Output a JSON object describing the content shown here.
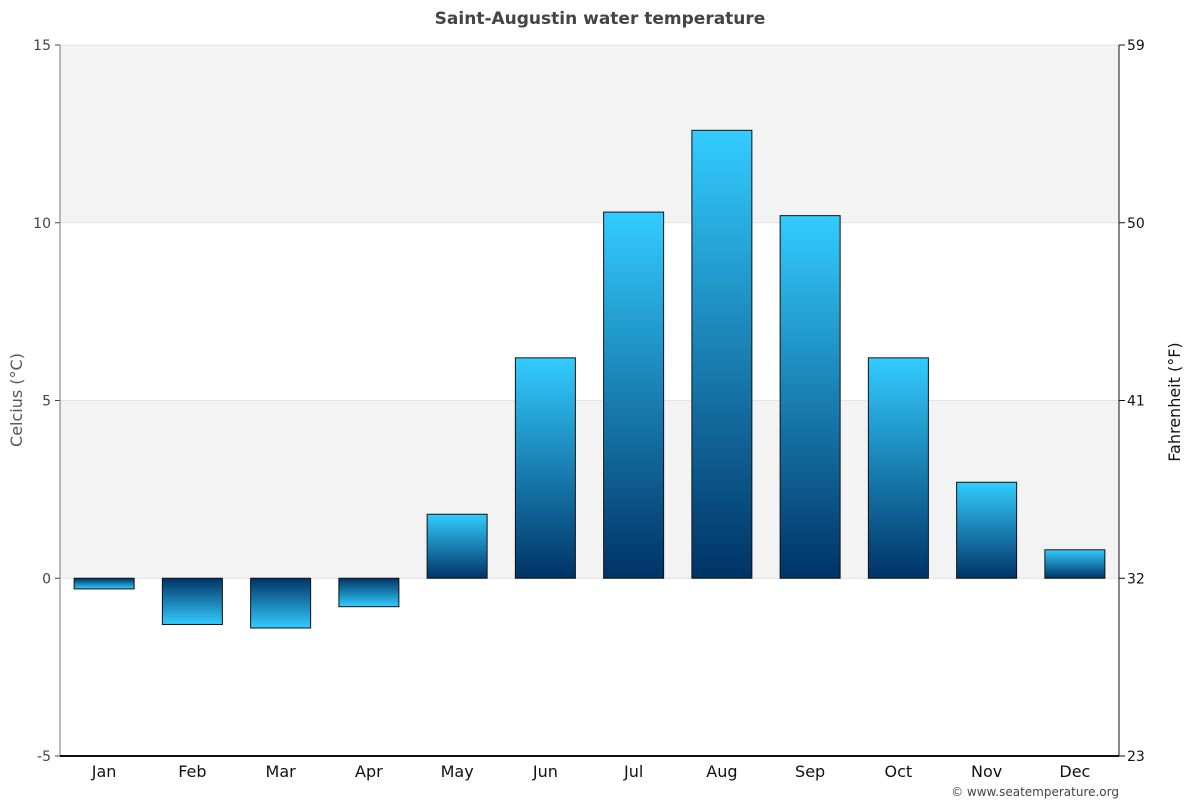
{
  "chart_data": {
    "type": "bar",
    "title": "Saint-Augustin water temperature",
    "ylabel": "Celcius (°C)",
    "ylabel_right": "Fahrenheit (°F)",
    "categories": [
      "Jan",
      "Feb",
      "Mar",
      "Apr",
      "May",
      "Jun",
      "Jul",
      "Aug",
      "Sep",
      "Oct",
      "Nov",
      "Dec"
    ],
    "values": [
      -0.3,
      -1.3,
      -1.4,
      -0.8,
      1.8,
      6.2,
      10.3,
      12.6,
      10.2,
      6.2,
      2.7,
      0.8
    ],
    "ylim": [
      -5,
      15
    ],
    "yticks": [
      15,
      10,
      5,
      0,
      -5
    ],
    "ytick_labels": [
      "15",
      "10",
      "5",
      "0",
      "-5"
    ],
    "yticks_right": [
      59,
      50,
      41,
      32,
      23
    ],
    "ytick_right_labels": [
      "59",
      "50",
      "41",
      "32",
      "23"
    ],
    "band_colors": [
      "#f3f3f3",
      "#ffffff"
    ],
    "bar_color_light": "#33ccff",
    "bar_color_dark": "#003366",
    "grid": true,
    "legend": "none"
  },
  "credit": "© www.seatemperature.org"
}
